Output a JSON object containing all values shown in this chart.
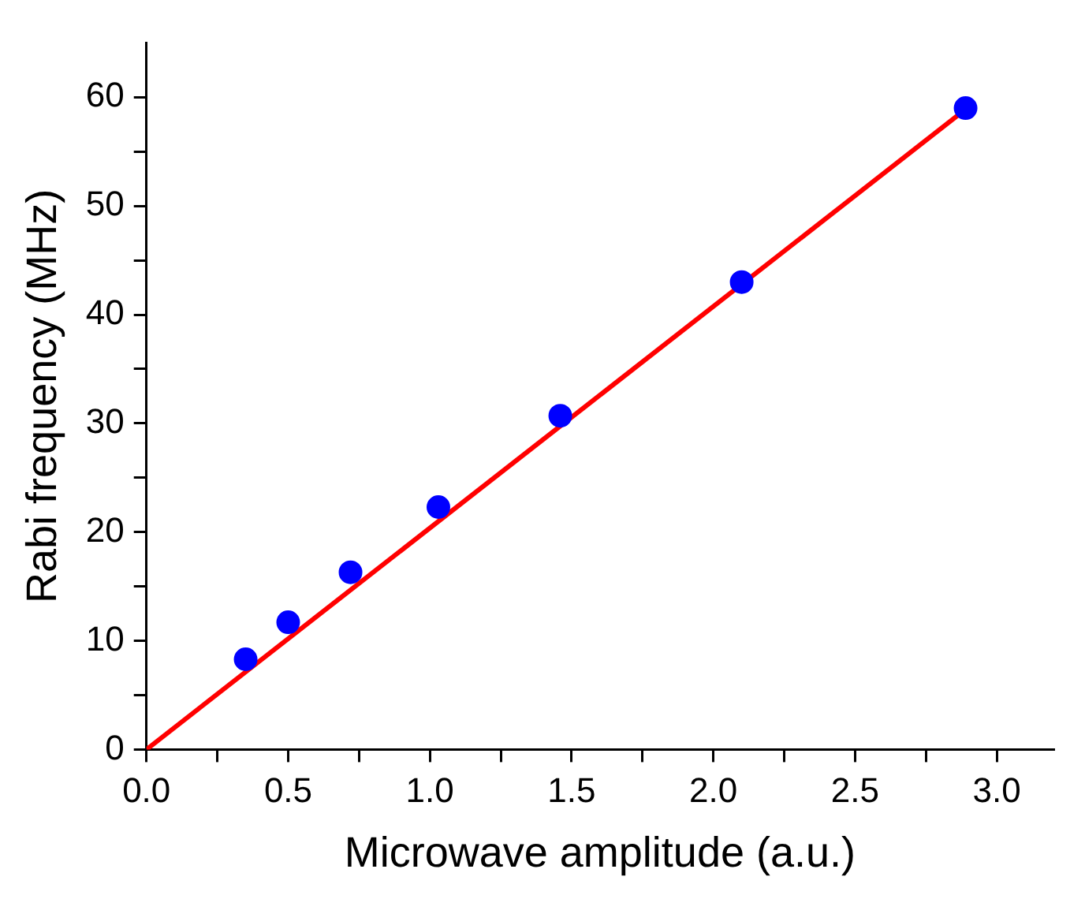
{
  "chart_data": {
    "type": "scatter",
    "xlabel": "Microwave amplitude (a.u.)",
    "ylabel": "Rabi frequency (MHz)",
    "xlim": [
      0,
      3.2
    ],
    "ylim": [
      0,
      65
    ],
    "xticks": [
      {
        "value": 0,
        "label": "0.0"
      },
      {
        "value": 0.25,
        "label": null
      },
      {
        "value": 0.5,
        "label": "0.5"
      },
      {
        "value": 0.75,
        "label": null
      },
      {
        "value": 1,
        "label": "1.0"
      },
      {
        "value": 1.25,
        "label": null
      },
      {
        "value": 1.5,
        "label": "1.5"
      },
      {
        "value": 1.75,
        "label": null
      },
      {
        "value": 2,
        "label": "2.0"
      },
      {
        "value": 2.25,
        "label": null
      },
      {
        "value": 2.5,
        "label": "2.5"
      },
      {
        "value": 2.75,
        "label": null
      },
      {
        "value": 3,
        "label": "3.0"
      }
    ],
    "yticks": [
      0,
      {
        "value": 5,
        "label": null
      },
      10,
      {
        "value": 15,
        "label": null
      },
      20,
      {
        "value": 25,
        "label": null
      },
      30,
      {
        "value": 35,
        "label": null
      },
      40,
      {
        "value": 45,
        "label": null
      },
      50,
      {
        "value": 55,
        "label": null
      },
      60
    ],
    "grid": false,
    "legend": false,
    "series": [
      {
        "color": "#0000ff",
        "marker": "circle",
        "x": [
          0.35,
          0.5,
          0.72,
          1.03,
          1.46,
          2.1,
          2.89
        ],
        "values": [
          8.3,
          11.7,
          16.3,
          22.3,
          30.7,
          43.0,
          59.0
        ]
      },
      {
        "type": "line",
        "color": "#ff0000",
        "marker": "none",
        "line_style": "solid",
        "x": [
          0,
          2.92
        ],
        "values": [
          0,
          59.5
        ]
      }
    ]
  }
}
